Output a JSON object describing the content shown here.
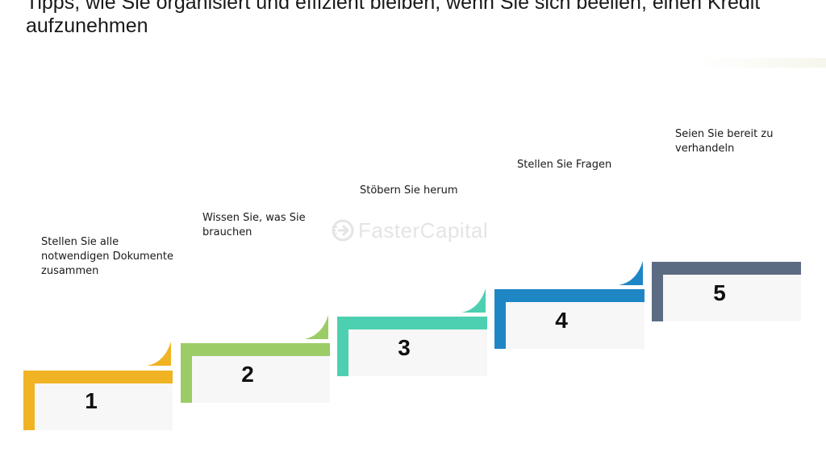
{
  "title": "Tipps, wie Sie organisiert und effizient bleiben, wenn Sie sich beeilen, einen Kredit aufzunehmen",
  "watermark": {
    "text": "FasterCapital",
    "icon": "fastercapital-logo-icon"
  },
  "steps": [
    {
      "number": "1",
      "label": "Stellen Sie alle notwendigen Dokumente zusammen",
      "color": "#f0b323"
    },
    {
      "number": "2",
      "label": "Wissen Sie, was Sie brauchen",
      "color": "#9ccc65"
    },
    {
      "number": "3",
      "label": "Stöbern Sie herum",
      "color": "#4dd0b1"
    },
    {
      "number": "4",
      "label": "Stellen Sie Fragen",
      "color": "#1f86c6"
    },
    {
      "number": "5",
      "label": "Seien Sie bereit zu verhandeln",
      "color": "#5b6b82"
    }
  ]
}
